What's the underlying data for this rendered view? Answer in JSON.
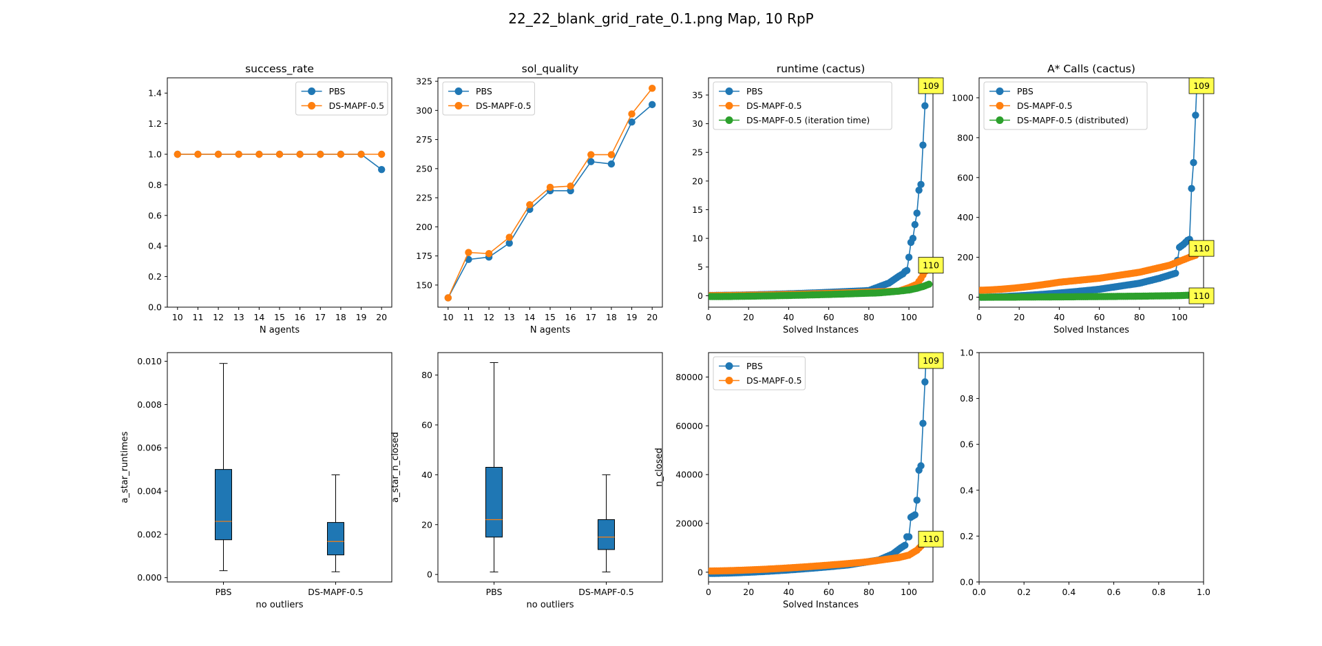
{
  "figure_title": "22_22_blank_grid_rate_0.1.png Map, 10 RpP",
  "colors": {
    "PBS": "#1f77b4",
    "DS-MAPF-0.5": "#ff7f0e",
    "green": "#2ca02c",
    "median": "#ff7f0e",
    "annotation_bg": "#ffff4d"
  },
  "chart_data": [
    {
      "id": "success_rate",
      "type": "line",
      "title": "success_rate",
      "xlabel": "N agents",
      "ylabel": "",
      "categories": [
        "10",
        "11",
        "12",
        "13",
        "14",
        "15",
        "16",
        "17",
        "18",
        "19",
        "20"
      ],
      "ylim": [
        0,
        1.5
      ],
      "yticks": [
        "0.0",
        "0.2",
        "0.4",
        "0.6",
        "0.8",
        "1.0",
        "1.2",
        "1.4"
      ],
      "legend": "top-right",
      "series": [
        {
          "name": "PBS",
          "color": "#1f77b4",
          "values": [
            1,
            1,
            1,
            1,
            1,
            1,
            1,
            1,
            1,
            1,
            0.9
          ]
        },
        {
          "name": "DS-MAPF-0.5",
          "color": "#ff7f0e",
          "values": [
            1,
            1,
            1,
            1,
            1,
            1,
            1,
            1,
            1,
            1,
            1
          ]
        }
      ]
    },
    {
      "id": "sol_quality",
      "type": "line",
      "title": "sol_quality",
      "xlabel": "N agents",
      "ylabel": "",
      "categories": [
        "10",
        "11",
        "12",
        "13",
        "14",
        "15",
        "16",
        "17",
        "18",
        "19",
        "20"
      ],
      "ylim": [
        131,
        328
      ],
      "yticks": [
        "150",
        "175",
        "200",
        "225",
        "250",
        "275",
        "300",
        "325"
      ],
      "legend": "top-left",
      "series": [
        {
          "name": "PBS",
          "color": "#1f77b4",
          "values": [
            139,
            172,
            174,
            186,
            215,
            231,
            231,
            256,
            254,
            290,
            305
          ]
        },
        {
          "name": "DS-MAPF-0.5",
          "color": "#ff7f0e",
          "values": [
            139,
            178,
            177,
            191,
            219,
            234,
            235,
            262,
            262,
            297,
            319
          ]
        }
      ]
    },
    {
      "id": "runtime_cactus",
      "type": "scatter",
      "title": "runtime (cactus)",
      "xlabel": "Solved Instances",
      "ylabel": "",
      "xlim": [
        0,
        112
      ],
      "ylim": [
        -2,
        38
      ],
      "xticks": [
        "0",
        "20",
        "40",
        "60",
        "80",
        "100"
      ],
      "yticks": [
        "0",
        "5",
        "10",
        "15",
        "20",
        "25",
        "30",
        "35"
      ],
      "legend": "top-left",
      "annotations": [
        {
          "text": "109",
          "series": "PBS"
        },
        {
          "text": "110",
          "series": "DS-MAPF-0.5"
        }
      ],
      "series": [
        {
          "name": "PBS",
          "color": "#1f77b4",
          "n": 109,
          "curve": {
            "base": 0.05,
            "slope": 0.004,
            "knee": 80,
            "kneeval": 0.9,
            "pts": [
              [
                90,
                2.2
              ],
              [
                95,
                3.4
              ],
              [
                97,
                3.8
              ],
              [
                98,
                4.2
              ],
              [
                99,
                4.4
              ],
              [
                100,
                6.7
              ],
              [
                101,
                9.3
              ],
              [
                102,
                10.0
              ],
              [
                103,
                12.4
              ],
              [
                104,
                14.4
              ],
              [
                105,
                18.4
              ],
              [
                106,
                19.4
              ],
              [
                109,
                40
              ]
            ]
          }
        },
        {
          "name": "DS-MAPF-0.5",
          "color": "#ff7f0e",
          "n": 110,
          "curve": {
            "base": 0.02,
            "slope": 0.005,
            "knee": 95,
            "kneeval": 0.8,
            "pts": [
              [
                100,
                1.4
              ],
              [
                104,
                2.0
              ],
              [
                106,
                3.0
              ],
              [
                108,
                4.2
              ],
              [
                110,
                5.5
              ]
            ]
          }
        },
        {
          "name": "DS-MAPF-0.5 (iteration time)",
          "color": "#2ca02c",
          "n": 110,
          "curve": {
            "base": -0.15,
            "slope": 0.006,
            "knee": 85,
            "kneeval": 0.5,
            "pts": [
              [
                95,
                0.8
              ],
              [
                100,
                1.0
              ],
              [
                104,
                1.3
              ],
              [
                107,
                1.6
              ],
              [
                110,
                2.0
              ]
            ]
          }
        }
      ]
    },
    {
      "id": "astar_calls_cactus",
      "type": "scatter",
      "title": "A* Calls (cactus)",
      "xlabel": "Solved Instances",
      "ylabel": "",
      "xlim": [
        0,
        112
      ],
      "ylim": [
        -50,
        1100
      ],
      "xticks": [
        "0",
        "20",
        "40",
        "60",
        "80",
        "100"
      ],
      "yticks": [
        "0",
        "200",
        "400",
        "600",
        "800",
        "1000"
      ],
      "legend": "top-left",
      "annotations": [
        {
          "text": "109",
          "series": "PBS"
        },
        {
          "text": "110",
          "series": "DS-MAPF-0.5"
        },
        {
          "text": "110",
          "series": "DS-MAPF-0.5 (distributed)"
        }
      ],
      "series": [
        {
          "name": "PBS",
          "color": "#1f77b4",
          "n": 109,
          "curve": {
            "base": 0,
            "slope": 0.35,
            "knee": 60,
            "kneeval": 40,
            "pts": [
              [
                80,
                70
              ],
              [
                90,
                95
              ],
              [
                98,
                120
              ],
              [
                100,
                250
              ],
              [
                102,
                265
              ],
              [
                104,
                285
              ],
              [
                105,
                290
              ],
              [
                106,
                545
              ],
              [
                107,
                675
              ],
              [
                109,
                1150
              ]
            ]
          }
        },
        {
          "name": "DS-MAPF-0.5",
          "color": "#ff7f0e",
          "n": 110,
          "curve": {
            "base": 35,
            "slope": 0.9,
            "knee": 40,
            "kneeval": 75,
            "pts": [
              [
                60,
                95
              ],
              [
                80,
                125
              ],
              [
                95,
                160
              ],
              [
                100,
                180
              ],
              [
                105,
                200
              ],
              [
                108,
                210
              ],
              [
                110,
                250
              ]
            ]
          }
        },
        {
          "name": "DS-MAPF-0.5 (distributed)",
          "color": "#2ca02c",
          "n": 110,
          "curve": {
            "base": 0,
            "slope": 0.05,
            "knee": 80,
            "kneeval": 5,
            "pts": [
              [
                100,
                8
              ],
              [
                105,
                10
              ],
              [
                110,
                12
              ]
            ]
          }
        }
      ]
    },
    {
      "id": "a_star_runtimes_box",
      "type": "box",
      "title": "",
      "xlabel": "no outliers",
      "ylabel": "a_star_runtimes",
      "categories": [
        "PBS",
        "DS-MAPF-0.5"
      ],
      "ylim": [
        -0.0002,
        0.0104
      ],
      "yticks": [
        "0.000",
        "0.002",
        "0.004",
        "0.006",
        "0.008",
        "0.010"
      ],
      "boxes": [
        {
          "name": "PBS",
          "whislo": 0.00032,
          "q1": 0.00175,
          "med": 0.0026,
          "q3": 0.005,
          "whishi": 0.0099
        },
        {
          "name": "DS-MAPF-0.5",
          "whislo": 0.00027,
          "q1": 0.00105,
          "med": 0.00167,
          "q3": 0.00255,
          "whishi": 0.00475
        }
      ]
    },
    {
      "id": "a_star_n_closed_box",
      "type": "box",
      "title": "",
      "xlabel": "no outliers",
      "ylabel": "a_star_n_closed",
      "categories": [
        "PBS",
        "DS-MAPF-0.5"
      ],
      "ylim": [
        -3,
        89
      ],
      "yticks": [
        "0",
        "20",
        "40",
        "60",
        "80"
      ],
      "boxes": [
        {
          "name": "PBS",
          "whislo": 1,
          "q1": 15,
          "med": 22,
          "q3": 43,
          "whishi": 85
        },
        {
          "name": "DS-MAPF-0.5",
          "whislo": 1,
          "q1": 10,
          "med": 15,
          "q3": 22,
          "whishi": 40
        }
      ]
    },
    {
      "id": "n_closed_cactus",
      "type": "scatter",
      "title": "",
      "xlabel": "Solved Instances",
      "ylabel": "n_closed",
      "xlim": [
        0,
        112
      ],
      "ylim": [
        -4000,
        90000
      ],
      "xticks": [
        "0",
        "20",
        "40",
        "60",
        "80",
        "100"
      ],
      "yticks": [
        "0",
        "20000",
        "40000",
        "60000",
        "80000"
      ],
      "legend": "top-left",
      "annotations": [
        {
          "text": "109",
          "series": "PBS"
        },
        {
          "text": "110",
          "series": "DS-MAPF-0.5"
        }
      ],
      "series": [
        {
          "name": "PBS",
          "color": "#1f77b4",
          "n": 109,
          "curve": {
            "base": -500,
            "slope": 40,
            "knee": 70,
            "kneeval": 3000,
            "pts": [
              [
                85,
                5000
              ],
              [
                92,
                7500
              ],
              [
                96,
                10000
              ],
              [
                98,
                11000
              ],
              [
                99,
                14500
              ],
              [
                100,
                14500
              ],
              [
                101,
                22500
              ],
              [
                102,
                23000
              ],
              [
                103,
                23500
              ],
              [
                104,
                29500
              ],
              [
                105,
                41800
              ],
              [
                106,
                43600
              ],
              [
                107,
                61000
              ],
              [
                109,
                95000
              ]
            ]
          }
        },
        {
          "name": "DS-MAPF-0.5",
          "color": "#ff7f0e",
          "n": 110,
          "curve": {
            "base": 500,
            "slope": 45,
            "knee": 80,
            "kneeval": 4300,
            "pts": [
              [
                95,
                6000
              ],
              [
                100,
                7000
              ],
              [
                104,
                9000
              ],
              [
                107,
                11500
              ],
              [
                110,
                14000
              ]
            ]
          }
        }
      ]
    },
    {
      "id": "empty_axes",
      "type": "scatter",
      "title": "",
      "xlabel": "",
      "ylabel": "",
      "xlim": [
        0,
        1
      ],
      "ylim": [
        0,
        1
      ],
      "xticks": [
        "0.0",
        "0.2",
        "0.4",
        "0.6",
        "0.8",
        "1.0"
      ],
      "yticks": [
        "0.0",
        "0.2",
        "0.4",
        "0.6",
        "0.8",
        "1.0"
      ],
      "series": []
    }
  ]
}
